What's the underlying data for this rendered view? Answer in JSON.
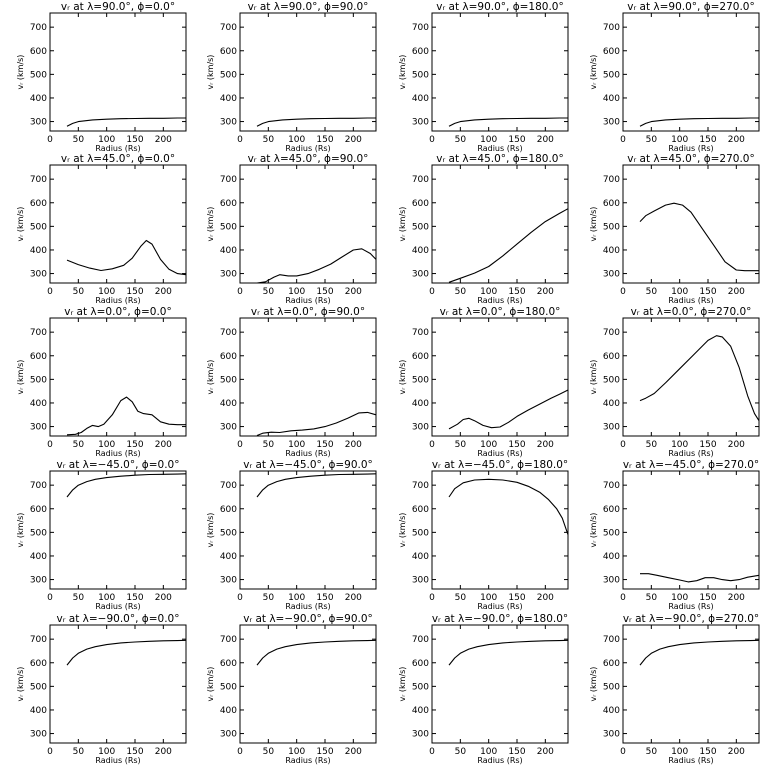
{
  "figure": {
    "xlabel": "Radius (Rs)",
    "ylabel": "vᵣ (km/s)"
  },
  "chart_data": [
    {
      "type": "line",
      "title": "vᵣ at λ=90.0°, ϕ=0.0°",
      "xlabel": "Radius (Rs)",
      "ylabel": "vᵣ (km/s)",
      "xlim": [
        0,
        240
      ],
      "ylim": [
        260,
        760
      ],
      "xticks": [
        0,
        50,
        100,
        150,
        200
      ],
      "yticks": [
        300,
        400,
        500,
        600,
        700
      ],
      "x": [
        30,
        40,
        50,
        75,
        100,
        125,
        150,
        175,
        200,
        225,
        240
      ],
      "y": [
        280,
        292,
        300,
        307,
        310,
        312,
        313,
        314,
        314,
        315,
        315
      ]
    },
    {
      "type": "line",
      "title": "vᵣ at λ=90.0°, ϕ=90.0°",
      "xlabel": "Radius (Rs)",
      "ylabel": "vᵣ (km/s)",
      "xlim": [
        0,
        240
      ],
      "ylim": [
        260,
        760
      ],
      "xticks": [
        0,
        50,
        100,
        150,
        200
      ],
      "yticks": [
        300,
        400,
        500,
        600,
        700
      ],
      "x": [
        30,
        40,
        50,
        75,
        100,
        125,
        150,
        175,
        200,
        225,
        240
      ],
      "y": [
        280,
        292,
        300,
        307,
        310,
        312,
        313,
        314,
        314,
        315,
        315
      ]
    },
    {
      "type": "line",
      "title": "vᵣ at λ=90.0°, ϕ=180.0°",
      "xlabel": "Radius (Rs)",
      "ylabel": "vᵣ (km/s)",
      "xlim": [
        0,
        240
      ],
      "ylim": [
        260,
        760
      ],
      "xticks": [
        0,
        50,
        100,
        150,
        200
      ],
      "yticks": [
        300,
        400,
        500,
        600,
        700
      ],
      "x": [
        30,
        40,
        50,
        75,
        100,
        125,
        150,
        175,
        200,
        225,
        240
      ],
      "y": [
        280,
        292,
        300,
        307,
        310,
        312,
        313,
        314,
        314,
        315,
        315
      ]
    },
    {
      "type": "line",
      "title": "vᵣ at λ=90.0°, ϕ=270.0°",
      "xlabel": "Radius (Rs)",
      "ylabel": "vᵣ (km/s)",
      "xlim": [
        0,
        240
      ],
      "ylim": [
        260,
        760
      ],
      "xticks": [
        0,
        50,
        100,
        150,
        200
      ],
      "yticks": [
        300,
        400,
        500,
        600,
        700
      ],
      "x": [
        30,
        40,
        50,
        75,
        100,
        125,
        150,
        175,
        200,
        225,
        240
      ],
      "y": [
        280,
        292,
        300,
        307,
        310,
        312,
        313,
        314,
        314,
        315,
        315
      ]
    },
    {
      "type": "line",
      "title": "vᵣ at λ=45.0°, ϕ=0.0°",
      "xlabel": "Radius (Rs)",
      "ylabel": "vᵣ (km/s)",
      "xlim": [
        0,
        240
      ],
      "ylim": [
        260,
        760
      ],
      "xticks": [
        0,
        50,
        100,
        150,
        200
      ],
      "yticks": [
        300,
        400,
        500,
        600,
        700
      ],
      "x": [
        30,
        50,
        70,
        90,
        110,
        130,
        145,
        160,
        170,
        180,
        195,
        210,
        225,
        240
      ],
      "y": [
        357,
        338,
        323,
        313,
        320,
        335,
        365,
        415,
        440,
        425,
        360,
        318,
        300,
        295
      ]
    },
    {
      "type": "line",
      "title": "vᵣ at λ=45.0°, ϕ=90.0°",
      "xlabel": "Radius (Rs)",
      "ylabel": "vᵣ (km/s)",
      "xlim": [
        0,
        240
      ],
      "ylim": [
        260,
        760
      ],
      "xticks": [
        0,
        50,
        100,
        150,
        200
      ],
      "yticks": [
        300,
        400,
        500,
        600,
        700
      ],
      "x": [
        30,
        45,
        60,
        70,
        85,
        100,
        120,
        140,
        160,
        180,
        200,
        215,
        230,
        240
      ],
      "y": [
        260,
        265,
        285,
        295,
        290,
        290,
        300,
        318,
        340,
        370,
        400,
        405,
        385,
        360
      ]
    },
    {
      "type": "line",
      "title": "vᵣ at λ=45.0°, ϕ=180.0°",
      "xlabel": "Radius (Rs)",
      "ylabel": "vᵣ (km/s)",
      "xlim": [
        0,
        240
      ],
      "ylim": [
        260,
        760
      ],
      "xticks": [
        0,
        50,
        100,
        150,
        200
      ],
      "yticks": [
        300,
        400,
        500,
        600,
        700
      ],
      "x": [
        30,
        50,
        75,
        100,
        125,
        150,
        175,
        200,
        225,
        240
      ],
      "y": [
        263,
        280,
        302,
        330,
        375,
        425,
        475,
        520,
        555,
        575
      ]
    },
    {
      "type": "line",
      "title": "vᵣ at λ=45.0°, ϕ=270.0°",
      "xlabel": "Radius (Rs)",
      "ylabel": "vᵣ (km/s)",
      "xlim": [
        0,
        240
      ],
      "ylim": [
        260,
        760
      ],
      "xticks": [
        0,
        50,
        100,
        150,
        200
      ],
      "yticks": [
        300,
        400,
        500,
        600,
        700
      ],
      "x": [
        30,
        40,
        55,
        75,
        90,
        105,
        120,
        140,
        160,
        180,
        200,
        215,
        240
      ],
      "y": [
        520,
        545,
        565,
        590,
        598,
        590,
        560,
        490,
        420,
        350,
        315,
        312,
        312
      ]
    },
    {
      "type": "line",
      "title": "vᵣ at λ=0.0°, ϕ=0.0°",
      "xlabel": "Radius (Rs)",
      "ylabel": "vᵣ (km/s)",
      "xlim": [
        0,
        240
      ],
      "ylim": [
        260,
        760
      ],
      "xticks": [
        0,
        50,
        100,
        150,
        200
      ],
      "yticks": [
        300,
        400,
        500,
        600,
        700
      ],
      "x": [
        30,
        45,
        55,
        65,
        75,
        85,
        95,
        110,
        125,
        135,
        145,
        155,
        165,
        180,
        195,
        210,
        225,
        240
      ],
      "y": [
        265,
        267,
        275,
        292,
        305,
        300,
        310,
        350,
        410,
        425,
        405,
        365,
        355,
        350,
        320,
        310,
        308,
        308
      ]
    },
    {
      "type": "line",
      "title": "vᵣ at λ=0.0°, ϕ=90.0°",
      "xlabel": "Radius (Rs)",
      "ylabel": "vᵣ (km/s)",
      "xlim": [
        0,
        240
      ],
      "ylim": [
        260,
        760
      ],
      "xticks": [
        0,
        50,
        100,
        150,
        200
      ],
      "yticks": [
        300,
        400,
        500,
        600,
        700
      ],
      "x": [
        30,
        40,
        55,
        70,
        90,
        110,
        130,
        150,
        170,
        190,
        210,
        225,
        240
      ],
      "y": [
        262,
        272,
        276,
        275,
        282,
        285,
        290,
        300,
        315,
        335,
        358,
        360,
        350
      ]
    },
    {
      "type": "line",
      "title": "vᵣ at λ=0.0°, ϕ=180.0°",
      "xlabel": "Radius (Rs)",
      "ylabel": "vᵣ (km/s)",
      "xlim": [
        0,
        240
      ],
      "ylim": [
        260,
        760
      ],
      "xticks": [
        0,
        50,
        100,
        150,
        200
      ],
      "yticks": [
        300,
        400,
        500,
        600,
        700
      ],
      "x": [
        30,
        45,
        55,
        65,
        75,
        90,
        105,
        120,
        135,
        150,
        170,
        190,
        210,
        225,
        240
      ],
      "y": [
        290,
        310,
        330,
        335,
        325,
        305,
        295,
        298,
        318,
        343,
        370,
        395,
        420,
        437,
        455
      ]
    },
    {
      "type": "line",
      "title": "vᵣ at λ=0.0°, ϕ=270.0°",
      "xlabel": "Radius (Rs)",
      "ylabel": "vᵣ (km/s)",
      "xlim": [
        0,
        240
      ],
      "ylim": [
        260,
        760
      ],
      "xticks": [
        0,
        50,
        100,
        150,
        200
      ],
      "yticks": [
        300,
        400,
        500,
        600,
        700
      ],
      "x": [
        30,
        40,
        55,
        75,
        100,
        125,
        150,
        165,
        175,
        190,
        205,
        220,
        232,
        240
      ],
      "y": [
        410,
        420,
        440,
        485,
        545,
        605,
        665,
        685,
        680,
        640,
        550,
        430,
        355,
        325
      ]
    },
    {
      "type": "line",
      "title": "vᵣ at λ=−45.0°, ϕ=0.0°",
      "xlabel": "Radius (Rs)",
      "ylabel": "vᵣ (km/s)",
      "xlim": [
        0,
        240
      ],
      "ylim": [
        260,
        760
      ],
      "xticks": [
        0,
        50,
        100,
        150,
        200
      ],
      "yticks": [
        300,
        400,
        500,
        600,
        700
      ],
      "x": [
        30,
        40,
        50,
        65,
        80,
        100,
        125,
        150,
        175,
        200,
        225,
        240
      ],
      "y": [
        650,
        680,
        700,
        715,
        725,
        732,
        738,
        742,
        745,
        746,
        747,
        748
      ]
    },
    {
      "type": "line",
      "title": "vᵣ at λ=−45.0°, ϕ=90.0°",
      "xlabel": "Radius (Rs)",
      "ylabel": "vᵣ (km/s)",
      "xlim": [
        0,
        240
      ],
      "ylim": [
        260,
        760
      ],
      "xticks": [
        0,
        50,
        100,
        150,
        200
      ],
      "yticks": [
        300,
        400,
        500,
        600,
        700
      ],
      "x": [
        30,
        40,
        50,
        65,
        80,
        100,
        125,
        150,
        175,
        200,
        225,
        240
      ],
      "y": [
        650,
        680,
        700,
        715,
        725,
        732,
        738,
        742,
        745,
        746,
        747,
        748
      ]
    },
    {
      "type": "line",
      "title": "vᵣ at λ=−45.0°, ϕ=180.0°",
      "xlabel": "Radius (Rs)",
      "ylabel": "vᵣ (km/s)",
      "xlim": [
        0,
        240
      ],
      "ylim": [
        260,
        760
      ],
      "xticks": [
        0,
        50,
        100,
        150,
        200
      ],
      "yticks": [
        300,
        400,
        500,
        600,
        700
      ],
      "x": [
        30,
        40,
        55,
        75,
        100,
        125,
        150,
        170,
        190,
        205,
        220,
        230,
        240
      ],
      "y": [
        650,
        685,
        710,
        722,
        725,
        722,
        712,
        695,
        670,
        640,
        600,
        560,
        490
      ]
    },
    {
      "type": "line",
      "title": "vᵣ at λ=−45.0°, ϕ=270.0°",
      "xlabel": "Radius (Rs)",
      "ylabel": "vᵣ (km/s)",
      "xlim": [
        0,
        240
      ],
      "ylim": [
        260,
        760
      ],
      "xticks": [
        0,
        50,
        100,
        150,
        200
      ],
      "yticks": [
        300,
        400,
        500,
        600,
        700
      ],
      "x": [
        30,
        45,
        60,
        80,
        100,
        115,
        130,
        145,
        160,
        175,
        190,
        205,
        220,
        240
      ],
      "y": [
        325,
        325,
        318,
        308,
        298,
        290,
        295,
        308,
        308,
        300,
        295,
        300,
        310,
        318
      ]
    },
    {
      "type": "line",
      "title": "vᵣ at λ=−90.0°, ϕ=0.0°",
      "xlabel": "Radius (Rs)",
      "ylabel": "vᵣ (km/s)",
      "xlim": [
        0,
        240
      ],
      "ylim": [
        260,
        760
      ],
      "xticks": [
        0,
        50,
        100,
        150,
        200
      ],
      "yticks": [
        300,
        400,
        500,
        600,
        700
      ],
      "x": [
        30,
        40,
        50,
        65,
        80,
        100,
        125,
        150,
        175,
        200,
        225,
        240
      ],
      "y": [
        590,
        620,
        640,
        658,
        668,
        677,
        684,
        688,
        691,
        693,
        694,
        695
      ]
    },
    {
      "type": "line",
      "title": "vᵣ at λ=−90.0°, ϕ=90.0°",
      "xlabel": "Radius (Rs)",
      "ylabel": "vᵣ (km/s)",
      "xlim": [
        0,
        240
      ],
      "ylim": [
        260,
        760
      ],
      "xticks": [
        0,
        50,
        100,
        150,
        200
      ],
      "yticks": [
        300,
        400,
        500,
        600,
        700
      ],
      "x": [
        30,
        40,
        50,
        65,
        80,
        100,
        125,
        150,
        175,
        200,
        225,
        240
      ],
      "y": [
        590,
        620,
        640,
        658,
        668,
        677,
        684,
        688,
        691,
        693,
        694,
        695
      ]
    },
    {
      "type": "line",
      "title": "vᵣ at λ=−90.0°, ϕ=180.0°",
      "xlabel": "Radius (Rs)",
      "ylabel": "vᵣ (km/s)",
      "xlim": [
        0,
        240
      ],
      "ylim": [
        260,
        760
      ],
      "xticks": [
        0,
        50,
        100,
        150,
        200
      ],
      "yticks": [
        300,
        400,
        500,
        600,
        700
      ],
      "x": [
        30,
        40,
        50,
        65,
        80,
        100,
        125,
        150,
        175,
        200,
        225,
        240
      ],
      "y": [
        590,
        620,
        640,
        658,
        668,
        677,
        684,
        688,
        691,
        693,
        694,
        695
      ]
    },
    {
      "type": "line",
      "title": "vᵣ at λ=−90.0°, ϕ=270.0°",
      "xlabel": "Radius (Rs)",
      "ylabel": "vᵣ (km/s)",
      "xlim": [
        0,
        240
      ],
      "ylim": [
        260,
        760
      ],
      "xticks": [
        0,
        50,
        100,
        150,
        200
      ],
      "yticks": [
        300,
        400,
        500,
        600,
        700
      ],
      "x": [
        30,
        40,
        50,
        65,
        80,
        100,
        125,
        150,
        175,
        200,
        225,
        240
      ],
      "y": [
        590,
        620,
        640,
        658,
        668,
        677,
        684,
        688,
        691,
        693,
        694,
        695
      ]
    }
  ]
}
